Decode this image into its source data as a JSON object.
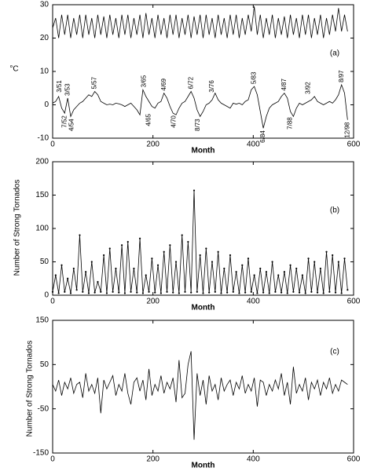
{
  "chart_data": [
    {
      "type": "line",
      "label": "(a)",
      "ylabel": "°C",
      "xlabel": "Month",
      "x": [
        0,
        6,
        12,
        18,
        24,
        30,
        36,
        42,
        48,
        54,
        60,
        66,
        72,
        78,
        84,
        90,
        96,
        102,
        108,
        114,
        120,
        126,
        132,
        138,
        144,
        150,
        156,
        162,
        168,
        174,
        180,
        186,
        192,
        198,
        204,
        210,
        216,
        222,
        228,
        234,
        240,
        246,
        252,
        258,
        264,
        270,
        276,
        282,
        288,
        294,
        300,
        306,
        312,
        318,
        324,
        330,
        336,
        342,
        348,
        354,
        360,
        366,
        372,
        378,
        384,
        390,
        396,
        402,
        408,
        414,
        420,
        426,
        432,
        438,
        444,
        450,
        456,
        462,
        468,
        474,
        480,
        486,
        492,
        498,
        504,
        510,
        516,
        522,
        528,
        534,
        540,
        546,
        552,
        558,
        564,
        570,
        576,
        582,
        588
      ],
      "series": [
        {
          "color": "#000000",
          "values": [
            23,
            26,
            20,
            27,
            21,
            27,
            20,
            26,
            21,
            27,
            20,
            27,
            21,
            26,
            20,
            27,
            21,
            26.5,
            20,
            27,
            21,
            26,
            20,
            27,
            21,
            27,
            20,
            26,
            21,
            27,
            20,
            27.5,
            21,
            26,
            20,
            27,
            21,
            26,
            20,
            27,
            21,
            27,
            20,
            26,
            21,
            27,
            20,
            26.5,
            21,
            27,
            20,
            27,
            21,
            26,
            20,
            27,
            21,
            26,
            20,
            27,
            21,
            27,
            20,
            26,
            21,
            27,
            22,
            29.5,
            21,
            27,
            20,
            26,
            21,
            27,
            20,
            26,
            21,
            26.5,
            20,
            27,
            21,
            26,
            20,
            27,
            21,
            27,
            20,
            26,
            21,
            27,
            20,
            26,
            21,
            27,
            22,
            29,
            22,
            27,
            22
          ]
        },
        {
          "color": "#000000",
          "values": [
            0.5,
            1,
            2.5,
            -1,
            -2.5,
            2,
            -3.5,
            -1.5,
            -0.5,
            0.5,
            1,
            2,
            3,
            2.5,
            4,
            3,
            1,
            0.5,
            0,
            0.2,
            0,
            0.5,
            0.3,
            0,
            -0.5,
            0,
            0.5,
            -0.5,
            -1.5,
            -3,
            4.5,
            2.5,
            1,
            -0.5,
            -1,
            0.5,
            1,
            3.5,
            2,
            -0.5,
            -2.5,
            -3,
            -1,
            0.5,
            1,
            2.5,
            4,
            2,
            -1.5,
            -3.5,
            -2,
            0,
            0.5,
            1.5,
            3.5,
            1.5,
            0.5,
            0,
            -0.5,
            -1,
            0.5,
            0.2,
            0.5,
            0,
            1,
            1.5,
            4.5,
            5.5,
            3,
            -2,
            -7,
            -3.5,
            -1,
            0,
            0.5,
            1,
            2.5,
            3.5,
            2,
            -2,
            -3.5,
            -1,
            0.5,
            0,
            0.5,
            1,
            1.5,
            2.5,
            1,
            0.5,
            0,
            0.5,
            1,
            0.5,
            1.5,
            3,
            6,
            3.5,
            -4.5
          ]
        }
      ],
      "annotations": [
        {
          "text": "3/51",
          "x": 14,
          "y": 3
        },
        {
          "text": "7/52",
          "x": 24,
          "y": -2.5
        },
        {
          "text": "3/53",
          "x": 30,
          "y": 2
        },
        {
          "text": "4/54",
          "x": 38,
          "y": -3.5
        },
        {
          "text": "5/57",
          "x": 84,
          "y": 4
        },
        {
          "text": "3/65",
          "x": 182,
          "y": 4.5
        },
        {
          "text": "4/65",
          "x": 192,
          "y": -2
        },
        {
          "text": "4/69",
          "x": 222,
          "y": 3.5
        },
        {
          "text": "4/70",
          "x": 242,
          "y": -2.5
        },
        {
          "text": "6/72",
          "x": 276,
          "y": 4
        },
        {
          "text": "8/73",
          "x": 290,
          "y": -3.5
        },
        {
          "text": "3/76",
          "x": 318,
          "y": 3
        },
        {
          "text": "5/83",
          "x": 402,
          "y": 5.5
        },
        {
          "text": "6/84",
          "x": 420,
          "y": -7
        },
        {
          "text": "4/87",
          "x": 462,
          "y": 3.5
        },
        {
          "text": "7/88",
          "x": 474,
          "y": -3
        },
        {
          "text": "3/92",
          "x": 510,
          "y": 2.5
        },
        {
          "text": "8/97",
          "x": 576,
          "y": 6
        },
        {
          "text": "12/98",
          "x": 588,
          "y": -4.5
        }
      ],
      "xlim": [
        0,
        600
      ],
      "xticks": [
        0,
        200,
        400,
        600
      ],
      "ylim": [
        -10,
        30
      ],
      "yticks": [
        -10,
        0,
        10,
        20,
        30
      ]
    },
    {
      "type": "line",
      "label": "(b)",
      "ylabel": "Number of Strong Tornados",
      "xlabel": "Month",
      "markers": true,
      "x": [
        0,
        6,
        12,
        18,
        24,
        30,
        36,
        42,
        48,
        54,
        60,
        66,
        72,
        78,
        84,
        90,
        96,
        102,
        108,
        114,
        120,
        126,
        132,
        138,
        144,
        150,
        156,
        162,
        168,
        174,
        180,
        186,
        192,
        198,
        204,
        210,
        216,
        222,
        228,
        234,
        240,
        246,
        252,
        258,
        264,
        270,
        276,
        282,
        288,
        294,
        300,
        306,
        312,
        318,
        324,
        330,
        336,
        342,
        348,
        354,
        360,
        366,
        372,
        378,
        384,
        390,
        396,
        402,
        408,
        414,
        420,
        426,
        432,
        438,
        444,
        450,
        456,
        462,
        468,
        474,
        480,
        486,
        492,
        498,
        504,
        510,
        516,
        522,
        528,
        534,
        540,
        546,
        552,
        558,
        564,
        570,
        576,
        582,
        588
      ],
      "series": [
        {
          "color": "#000000",
          "values": [
            5,
            30,
            3,
            45,
            5,
            25,
            3,
            40,
            8,
            90,
            5,
            35,
            3,
            50,
            4,
            20,
            5,
            60,
            3,
            70,
            5,
            40,
            4,
            75,
            3,
            80,
            5,
            40,
            4,
            85,
            3,
            30,
            5,
            55,
            4,
            45,
            3,
            65,
            5,
            75,
            4,
            50,
            3,
            90,
            5,
            80,
            4,
            157,
            5,
            60,
            3,
            70,
            4,
            50,
            5,
            65,
            3,
            40,
            4,
            60,
            5,
            35,
            3,
            45,
            4,
            55,
            5,
            30,
            3,
            40,
            4,
            35,
            3,
            50,
            5,
            30,
            4,
            35,
            3,
            45,
            5,
            40,
            4,
            30,
            3,
            55,
            5,
            50,
            4,
            40,
            3,
            65,
            5,
            60,
            4,
            50,
            3,
            55,
            8
          ]
        }
      ],
      "xlim": [
        0,
        600
      ],
      "xticks": [
        0,
        200,
        400,
        600
      ],
      "ylim": [
        0,
        200
      ],
      "yticks": [
        0,
        50,
        100,
        150,
        200
      ]
    },
    {
      "type": "line",
      "label": "(c)",
      "ylabel": "Number of Strong Tornados",
      "xlabel": "Month",
      "x": [
        0,
        6,
        12,
        18,
        24,
        30,
        36,
        42,
        48,
        54,
        60,
        66,
        72,
        78,
        84,
        90,
        96,
        102,
        108,
        114,
        120,
        126,
        132,
        138,
        144,
        150,
        156,
        162,
        168,
        174,
        180,
        186,
        192,
        198,
        204,
        210,
        216,
        222,
        228,
        234,
        240,
        246,
        252,
        258,
        264,
        270,
        276,
        282,
        288,
        294,
        300,
        306,
        312,
        318,
        324,
        330,
        336,
        342,
        348,
        354,
        360,
        366,
        372,
        378,
        384,
        390,
        396,
        402,
        408,
        414,
        420,
        426,
        432,
        438,
        444,
        450,
        456,
        462,
        468,
        474,
        480,
        486,
        492,
        498,
        504,
        510,
        516,
        522,
        528,
        534,
        540,
        546,
        552,
        558,
        564,
        570,
        576,
        582,
        588
      ],
      "series": [
        {
          "color": "#000000",
          "values": [
            5,
            -10,
            15,
            -20,
            10,
            -5,
            20,
            -15,
            5,
            10,
            -25,
            30,
            -10,
            5,
            -15,
            20,
            -60,
            15,
            -5,
            10,
            25,
            -20,
            5,
            -10,
            30,
            -15,
            -40,
            10,
            20,
            -10,
            15,
            -30,
            40,
            -20,
            5,
            -10,
            25,
            -15,
            10,
            -5,
            20,
            -35,
            60,
            -25,
            -15,
            50,
            80,
            -120,
            30,
            -20,
            15,
            -40,
            25,
            -10,
            5,
            -30,
            20,
            -10,
            5,
            15,
            -20,
            10,
            -5,
            25,
            -15,
            5,
            -10,
            20,
            -45,
            15,
            10,
            -20,
            5,
            -10,
            15,
            -5,
            30,
            -20,
            10,
            -40,
            45,
            -15,
            5,
            -10,
            20,
            -30,
            10,
            -5,
            15,
            -20,
            10,
            -5,
            20,
            -15,
            5,
            -10,
            15,
            10,
            5
          ]
        }
      ],
      "xlim": [
        0,
        600
      ],
      "xticks": [
        0,
        200,
        400,
        600
      ],
      "ylim": [
        -150,
        150
      ],
      "yticks": [
        -150,
        -50,
        50,
        150
      ]
    }
  ]
}
